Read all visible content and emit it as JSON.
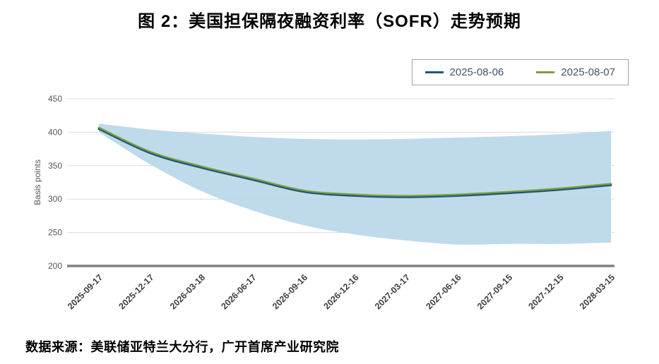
{
  "title": "图 2：美国担保隔夜融资利率（SOFR）走势预期",
  "source": "数据来源：美联储亚特兰大分行，广开首席产业研究院",
  "chart_data": {
    "type": "line",
    "title": "图 2：美国担保隔夜融资利率（SOFR）走势预期",
    "xlabel": "",
    "ylabel": "Basis points",
    "ylim": [
      200,
      450
    ],
    "yticks": [
      200,
      250,
      300,
      350,
      400,
      450
    ],
    "grid": true,
    "grid_color": "#dcdcdc",
    "baseline_color": "#808080",
    "legend_position": "top-right",
    "categories": [
      "2025-09-17",
      "2025-12-17",
      "2026-03-18",
      "2026-06-17",
      "2026-09-16",
      "2026-12-16",
      "2027-03-17",
      "2027-06-16",
      "2027-09-15",
      "2027-12-15",
      "2028-03-15"
    ],
    "series": [
      {
        "name": "2025-08-06",
        "color": "#1d5a74",
        "values": [
          405,
          369,
          347,
          329,
          311,
          305,
          303,
          305,
          309,
          314,
          321
        ]
      },
      {
        "name": "2025-08-07",
        "color": "#7f9e3f",
        "values": [
          407,
          371,
          349,
          331,
          313,
          307,
          305,
          307,
          311,
          316,
          323
        ]
      }
    ],
    "band": {
      "name": "forecast-uncertainty-band",
      "color": "#bcd8ea",
      "upper": [
        413,
        404,
        398,
        393,
        390,
        389,
        390,
        392,
        394,
        397,
        402
      ],
      "lower": [
        400,
        352,
        312,
        283,
        261,
        247,
        238,
        232,
        233,
        233,
        235
      ]
    }
  }
}
